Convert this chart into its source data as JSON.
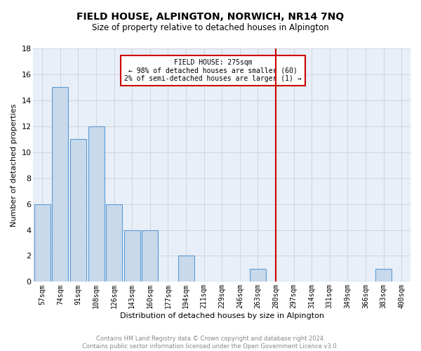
{
  "title": "FIELD HOUSE, ALPINGTON, NORWICH, NR14 7NQ",
  "subtitle": "Size of property relative to detached houses in Alpington",
  "xlabel": "Distribution of detached houses by size in Alpington",
  "ylabel": "Number of detached properties",
  "categories": [
    "57sqm",
    "74sqm",
    "91sqm",
    "108sqm",
    "126sqm",
    "143sqm",
    "160sqm",
    "177sqm",
    "194sqm",
    "211sqm",
    "229sqm",
    "246sqm",
    "263sqm",
    "280sqm",
    "297sqm",
    "314sqm",
    "331sqm",
    "349sqm",
    "366sqm",
    "383sqm",
    "400sqm"
  ],
  "values": [
    6,
    15,
    11,
    12,
    6,
    4,
    4,
    0,
    2,
    0,
    0,
    0,
    1,
    0,
    0,
    0,
    0,
    0,
    0,
    1,
    0
  ],
  "bar_color": "#c8d9eb",
  "bar_edge_color": "#5b9bd5",
  "vline_x": 13,
  "vline_color": "#cc0000",
  "annotation_title": "FIELD HOUSE: 275sqm",
  "annotation_line1": "← 98% of detached houses are smaller (60)",
  "annotation_line2": "2% of semi-detached houses are larger (1) →",
  "annotation_box_color": "#cc0000",
  "ylim": [
    0,
    18
  ],
  "yticks": [
    0,
    2,
    4,
    6,
    8,
    10,
    12,
    14,
    16,
    18
  ],
  "footer_line1": "Contains HM Land Registry data © Crown copyright and database right 2024.",
  "footer_line2": "Contains public sector information licensed under the Open Government Licence v3.0.",
  "grid_color": "#cccccc",
  "bg_color": "#e8eff8"
}
